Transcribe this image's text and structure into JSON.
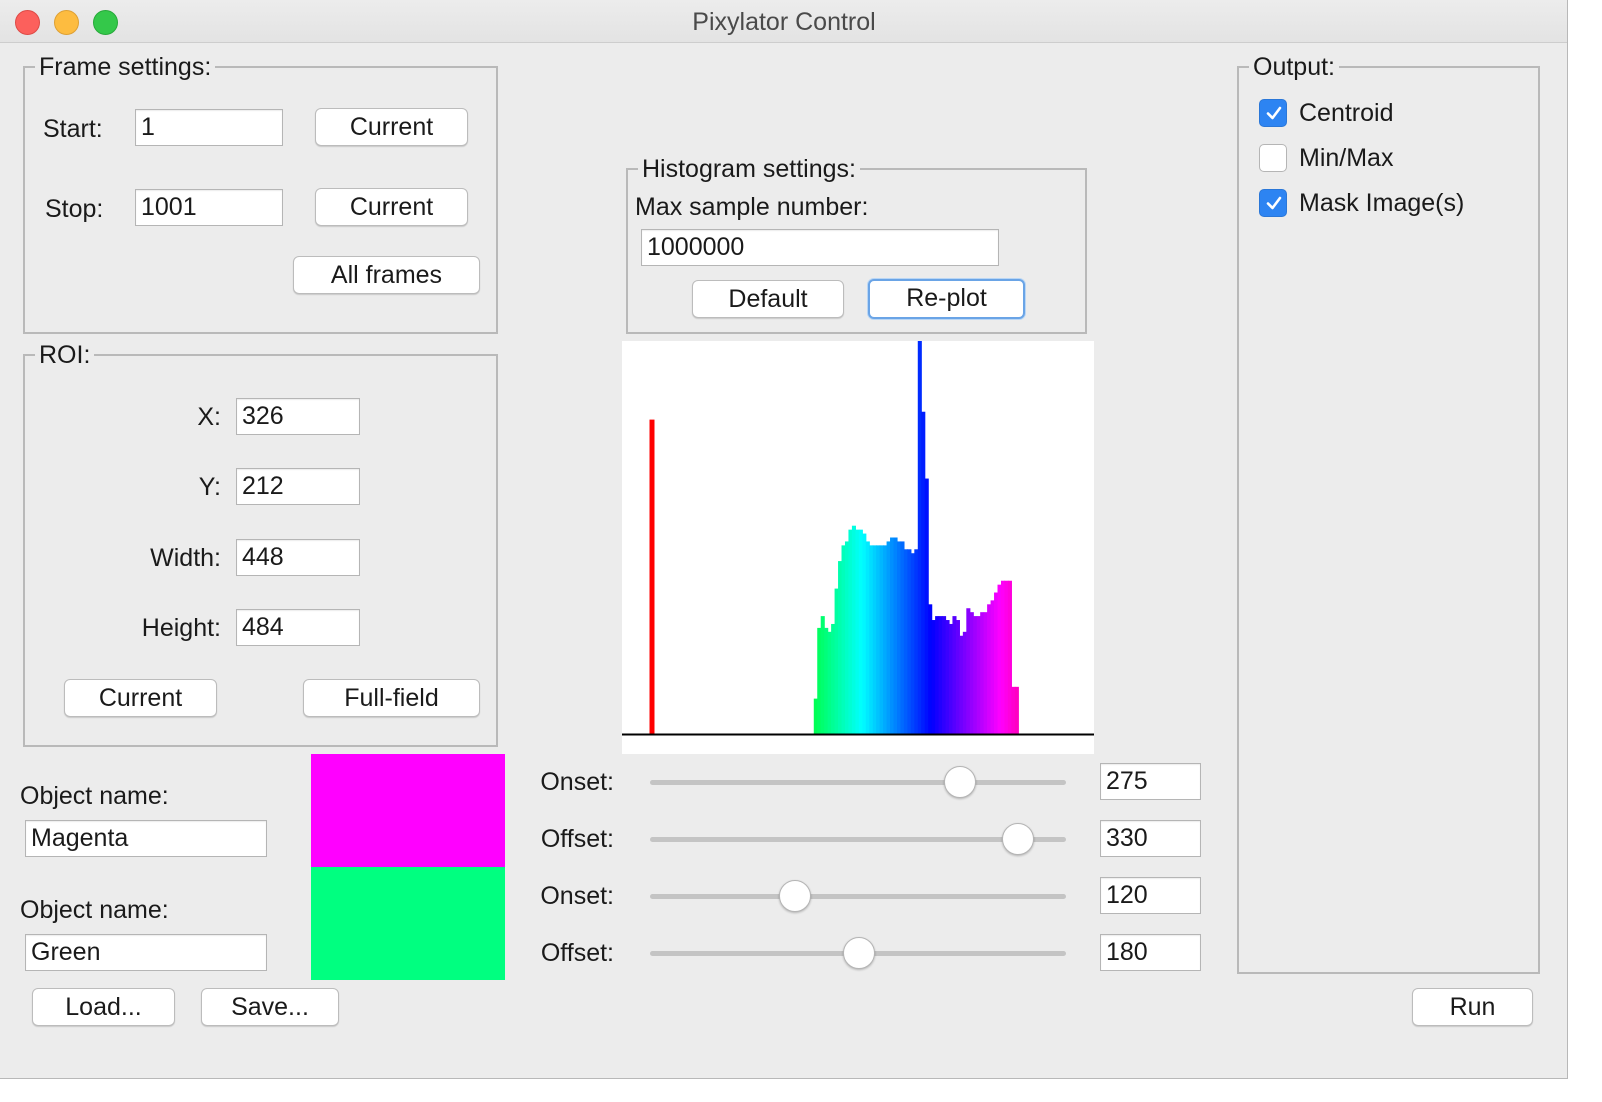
{
  "window": {
    "title": "Pixylator Control"
  },
  "frame_settings": {
    "legend": "Frame settings:",
    "start_label": "Start:",
    "start_value": "1",
    "stop_label": "Stop:",
    "stop_value": "1001",
    "current_label": "Current",
    "all_frames_label": "All frames"
  },
  "roi": {
    "legend": "ROI:",
    "x_label": "X:",
    "x_value": "326",
    "y_label": "Y:",
    "y_value": "212",
    "width_label": "Width:",
    "width_value": "448",
    "height_label": "Height:",
    "height_value": "484",
    "current_label": "Current",
    "full_field_label": "Full-field"
  },
  "objects": [
    {
      "label": "Object name:",
      "name": "Magenta",
      "color": "#ff00ff"
    },
    {
      "label": "Object name:",
      "name": "Green",
      "color": "#00ff80"
    }
  ],
  "buttons": {
    "load": "Load...",
    "save": "Save...",
    "run": "Run"
  },
  "histogram_settings": {
    "legend": "Histogram settings:",
    "max_sample_label": "Max sample number:",
    "max_sample_value": "1000000",
    "default_label": "Default",
    "replot_label": "Re-plot"
  },
  "sliders": [
    {
      "label": "Onset:",
      "value": "275",
      "position": 0.766
    },
    {
      "label": "Offset:",
      "value": "330",
      "position": 0.917
    },
    {
      "label": "Onset:",
      "value": "120",
      "position": 0.335
    },
    {
      "label": "Offset:",
      "value": "180",
      "position": 0.503
    }
  ],
  "output": {
    "legend": "Output:",
    "options": [
      {
        "label": "Centroid",
        "checked": true
      },
      {
        "label": "Min/Max",
        "checked": false
      },
      {
        "label": "Mask Image(s)",
        "checked": true
      }
    ]
  },
  "histogram": {
    "hue_range": [
      0,
      360
    ],
    "spike": {
      "hue": 0,
      "color": "#ff0000",
      "height": 0.8
    },
    "bars": [
      {
        "hue": 140,
        "height": 0.09
      },
      {
        "hue": 143,
        "height": 0.27
      },
      {
        "hue": 146,
        "height": 0.3
      },
      {
        "hue": 149,
        "height": 0.27
      },
      {
        "hue": 152,
        "height": 0.26
      },
      {
        "hue": 155,
        "height": 0.28
      },
      {
        "hue": 158,
        "height": 0.37
      },
      {
        "hue": 161,
        "height": 0.44
      },
      {
        "hue": 164,
        "height": 0.48
      },
      {
        "hue": 167,
        "height": 0.49
      },
      {
        "hue": 170,
        "height": 0.52
      },
      {
        "hue": 173,
        "height": 0.53
      },
      {
        "hue": 176,
        "height": 0.52
      },
      {
        "hue": 179,
        "height": 0.52
      },
      {
        "hue": 182,
        "height": 0.51
      },
      {
        "hue": 185,
        "height": 0.49
      },
      {
        "hue": 188,
        "height": 0.48
      },
      {
        "hue": 191,
        "height": 0.48
      },
      {
        "hue": 194,
        "height": 0.48
      },
      {
        "hue": 197,
        "height": 0.48
      },
      {
        "hue": 200,
        "height": 0.48
      },
      {
        "hue": 203,
        "height": 0.49
      },
      {
        "hue": 206,
        "height": 0.5
      },
      {
        "hue": 209,
        "height": 0.5
      },
      {
        "hue": 212,
        "height": 0.49
      },
      {
        "hue": 215,
        "height": 0.49
      },
      {
        "hue": 218,
        "height": 0.47
      },
      {
        "hue": 221,
        "height": 0.47
      },
      {
        "hue": 224,
        "height": 0.46
      },
      {
        "hue": 227,
        "height": 0.47
      },
      {
        "hue": 230,
        "height": 1.0
      },
      {
        "hue": 233,
        "height": 0.82
      },
      {
        "hue": 236,
        "height": 0.65
      },
      {
        "hue": 239,
        "height": 0.33
      },
      {
        "hue": 242,
        "height": 0.29
      },
      {
        "hue": 245,
        "height": 0.3
      },
      {
        "hue": 248,
        "height": 0.3
      },
      {
        "hue": 251,
        "height": 0.3
      },
      {
        "hue": 254,
        "height": 0.29
      },
      {
        "hue": 257,
        "height": 0.28
      },
      {
        "hue": 260,
        "height": 0.3
      },
      {
        "hue": 263,
        "height": 0.29
      },
      {
        "hue": 266,
        "height": 0.25
      },
      {
        "hue": 269,
        "height": 0.26
      },
      {
        "hue": 272,
        "height": 0.32
      },
      {
        "hue": 275,
        "height": 0.31
      },
      {
        "hue": 278,
        "height": 0.3
      },
      {
        "hue": 281,
        "height": 0.3
      },
      {
        "hue": 284,
        "height": 0.31
      },
      {
        "hue": 287,
        "height": 0.31
      },
      {
        "hue": 290,
        "height": 0.33
      },
      {
        "hue": 293,
        "height": 0.34
      },
      {
        "hue": 296,
        "height": 0.36
      },
      {
        "hue": 299,
        "height": 0.38
      },
      {
        "hue": 302,
        "height": 0.39
      },
      {
        "hue": 305,
        "height": 0.39
      },
      {
        "hue": 308,
        "height": 0.39
      },
      {
        "hue": 311,
        "height": 0.12
      },
      {
        "hue": 314,
        "height": 0.12
      }
    ]
  }
}
